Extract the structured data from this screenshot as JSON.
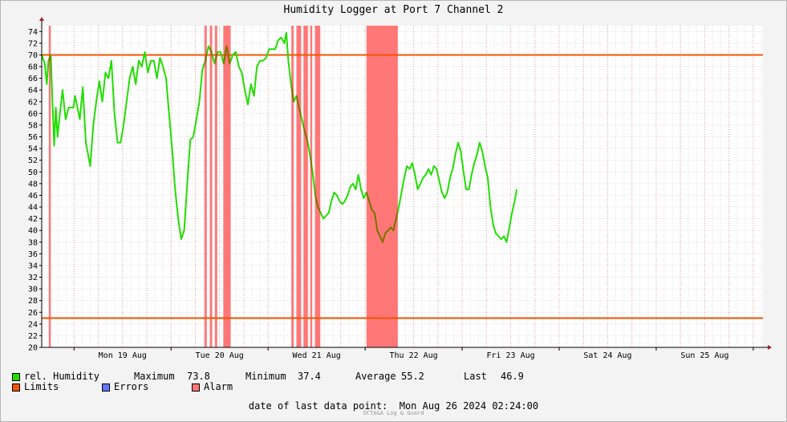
{
  "title": "Humidity Logger at Port 7 Channel 2",
  "legend": {
    "series_label": "rel. Humidity",
    "max_label": "Maximum",
    "max_value": "73.8",
    "min_label": "Minimum",
    "min_value": "37.4",
    "avg_label": "Average",
    "avg_value": "55.2",
    "last_label": "Last",
    "last_value": "46.9",
    "limits_label": "Limits",
    "errors_label": "Errors",
    "alarm_label": "Alarm"
  },
  "footer": {
    "label": "date of last data point:",
    "value": "Mon Aug 26 2024 02:24:00",
    "credit": "OCTA&A Log & Guard"
  },
  "colors": {
    "series": "#22dd00",
    "series_alarm": "#8a6a00",
    "limits": "#ee5500",
    "errors": "#6677ff",
    "alarm": "#ff7777",
    "grid_major": "#e0a0a0",
    "grid_minor": "#dcdcdc"
  },
  "chart_data": {
    "type": "line",
    "xlabel": "",
    "ylabel": "",
    "x_range": [
      "2024-08-18 16:00",
      "2024-08-26 02:24"
    ],
    "ylim": [
      20,
      75
    ],
    "y_ticks": [
      20,
      22,
      24,
      26,
      28,
      30,
      32,
      34,
      36,
      38,
      40,
      42,
      44,
      46,
      48,
      50,
      52,
      54,
      56,
      58,
      60,
      62,
      64,
      66,
      68,
      70,
      72,
      74
    ],
    "x_ticks": [
      {
        "label": "Mon 19 Aug",
        "x": "2024-08-19 12:00"
      },
      {
        "label": "Tue 20 Aug",
        "x": "2024-08-20 12:00"
      },
      {
        "label": "Wed 21 Aug",
        "x": "2024-08-21 12:00"
      },
      {
        "label": "Thu 22 Aug",
        "x": "2024-08-22 12:00"
      },
      {
        "label": "Fri 23 Aug",
        "x": "2024-08-23 12:00"
      },
      {
        "label": "Sat 24 Aug",
        "x": "2024-08-24 12:00"
      },
      {
        "label": "Sun 25 Aug",
        "x": "2024-08-25 12:00"
      }
    ],
    "limits": [
      25,
      70
    ],
    "alarm_periods": [
      [
        "2024-08-18 17:45",
        "2024-08-18 18:15"
      ],
      [
        "2024-08-20 08:15",
        "2024-08-20 08:50"
      ],
      [
        "2024-08-20 09:35",
        "2024-08-20 10:10"
      ],
      [
        "2024-08-20 10:50",
        "2024-08-20 11:25"
      ],
      [
        "2024-08-20 12:55",
        "2024-08-20 14:45"
      ],
      [
        "2024-08-21 05:45",
        "2024-08-21 06:20"
      ],
      [
        "2024-08-21 07:00",
        "2024-08-21 08:10"
      ],
      [
        "2024-08-21 08:45",
        "2024-08-21 09:50"
      ],
      [
        "2024-08-21 10:25",
        "2024-08-21 10:55"
      ],
      [
        "2024-08-21 11:35",
        "2024-08-21 12:55"
      ],
      [
        "2024-08-22 00:20",
        "2024-08-22 08:05"
      ]
    ],
    "series": [
      {
        "name": "rel. Humidity",
        "points": [
          [
            "2024-08-18 16:00",
            70.0
          ],
          [
            "2024-08-18 16:45",
            68.5
          ],
          [
            "2024-08-18 17:15",
            65.0
          ],
          [
            "2024-08-18 17:40",
            69.0
          ],
          [
            "2024-08-18 18:15",
            70.0
          ],
          [
            "2024-08-18 18:40",
            62.0
          ],
          [
            "2024-08-18 19:05",
            54.5
          ],
          [
            "2024-08-18 19:30",
            61.0
          ],
          [
            "2024-08-18 19:55",
            56.0
          ],
          [
            "2024-08-18 20:40",
            61.0
          ],
          [
            "2024-08-18 21:10",
            64.0
          ],
          [
            "2024-08-18 21:55",
            59.0
          ],
          [
            "2024-08-18 22:40",
            61.0
          ],
          [
            "2024-08-18 23:50",
            61.0
          ],
          [
            "2024-08-19 00:15",
            63.0
          ],
          [
            "2024-08-19 01:25",
            59.0
          ],
          [
            "2024-08-19 02:10",
            64.5
          ],
          [
            "2024-08-19 02:55",
            55.0
          ],
          [
            "2024-08-19 04:00",
            51.0
          ],
          [
            "2024-08-19 04:45",
            58.0
          ],
          [
            "2024-08-19 05:30",
            62.0
          ],
          [
            "2024-08-19 06:15",
            65.5
          ],
          [
            "2024-08-19 07:00",
            62.0
          ],
          [
            "2024-08-19 07:45",
            67.0
          ],
          [
            "2024-08-19 08:30",
            66.0
          ],
          [
            "2024-08-19 09:15",
            69.0
          ],
          [
            "2024-08-19 10:00",
            60.0
          ],
          [
            "2024-08-19 10:45",
            55.0
          ],
          [
            "2024-08-19 11:30",
            55.0
          ],
          [
            "2024-08-19 12:15",
            58.0
          ],
          [
            "2024-08-19 13:00",
            62.0
          ],
          [
            "2024-08-19 13:45",
            66.0
          ],
          [
            "2024-08-19 14:30",
            68.0
          ],
          [
            "2024-08-19 15:15",
            65.0
          ],
          [
            "2024-08-19 16:00",
            69.0
          ],
          [
            "2024-08-19 16:45",
            68.0
          ],
          [
            "2024-08-19 17:30",
            70.5
          ],
          [
            "2024-08-19 18:15",
            67.0
          ],
          [
            "2024-08-19 19:00",
            69.0
          ],
          [
            "2024-08-19 19:45",
            69.0
          ],
          [
            "2024-08-19 20:30",
            66.0
          ],
          [
            "2024-08-19 21:15",
            69.5
          ],
          [
            "2024-08-19 22:00",
            68.0
          ],
          [
            "2024-08-19 22:45",
            66.0
          ],
          [
            "2024-08-19 23:30",
            60.0
          ],
          [
            "2024-08-20 00:15",
            54.0
          ],
          [
            "2024-08-20 01:00",
            47.0
          ],
          [
            "2024-08-20 01:45",
            42.0
          ],
          [
            "2024-08-20 02:30",
            38.5
          ],
          [
            "2024-08-20 03:15",
            40.0
          ],
          [
            "2024-08-20 04:00",
            48.0
          ],
          [
            "2024-08-20 04:45",
            55.5
          ],
          [
            "2024-08-20 05:30",
            56.0
          ],
          [
            "2024-08-20 06:15",
            59.0
          ],
          [
            "2024-08-20 07:00",
            62.0
          ],
          [
            "2024-08-20 07:45",
            67.5
          ],
          [
            "2024-08-20 08:30",
            69.0
          ],
          [
            "2024-08-20 09:15",
            71.5
          ],
          [
            "2024-08-20 10:00",
            70.5
          ],
          [
            "2024-08-20 10:45",
            68.5
          ],
          [
            "2024-08-20 11:30",
            70.5
          ],
          [
            "2024-08-20 12:15",
            70.5
          ],
          [
            "2024-08-20 13:00",
            68.5
          ],
          [
            "2024-08-20 13:45",
            71.5
          ],
          [
            "2024-08-20 14:30",
            68.5
          ],
          [
            "2024-08-20 15:15",
            70.0
          ],
          [
            "2024-08-20 16:00",
            70.5
          ],
          [
            "2024-08-20 16:45",
            68.0
          ],
          [
            "2024-08-20 17:30",
            67.0
          ],
          [
            "2024-08-20 18:15",
            64.0
          ],
          [
            "2024-08-20 19:00",
            61.5
          ],
          [
            "2024-08-20 19:45",
            65.0
          ],
          [
            "2024-08-20 20:30",
            63.0
          ],
          [
            "2024-08-20 21:15",
            68.0
          ],
          [
            "2024-08-20 22:00",
            69.0
          ],
          [
            "2024-08-20 22:45",
            69.0
          ],
          [
            "2024-08-20 23:30",
            69.5
          ],
          [
            "2024-08-21 00:15",
            71.0
          ],
          [
            "2024-08-21 01:00",
            71.0
          ],
          [
            "2024-08-21 01:45",
            71.0
          ],
          [
            "2024-08-21 02:30",
            72.5
          ],
          [
            "2024-08-21 03:15",
            73.0
          ],
          [
            "2024-08-21 04:00",
            72.0
          ],
          [
            "2024-08-21 04:30",
            73.8
          ],
          [
            "2024-08-21 05:00",
            69.0
          ],
          [
            "2024-08-21 05:40",
            65.0
          ],
          [
            "2024-08-21 06:20",
            62.0
          ],
          [
            "2024-08-21 07:00",
            63.0
          ],
          [
            "2024-08-21 07:40",
            61.0
          ],
          [
            "2024-08-21 08:20",
            59.0
          ],
          [
            "2024-08-21 09:00",
            57.0
          ],
          [
            "2024-08-21 09:40",
            55.5
          ],
          [
            "2024-08-21 10:20",
            53.0
          ],
          [
            "2024-08-21 11:00",
            50.0
          ],
          [
            "2024-08-21 11:40",
            46.0
          ],
          [
            "2024-08-21 12:20",
            44.0
          ],
          [
            "2024-08-21 13:00",
            43.0
          ],
          [
            "2024-08-21 13:40",
            42.0
          ],
          [
            "2024-08-21 14:20",
            42.5
          ],
          [
            "2024-08-21 15:00",
            43.0
          ],
          [
            "2024-08-21 15:40",
            45.0
          ],
          [
            "2024-08-21 16:20",
            46.5
          ],
          [
            "2024-08-21 17:00",
            46.0
          ],
          [
            "2024-08-21 17:40",
            45.0
          ],
          [
            "2024-08-21 18:20",
            44.5
          ],
          [
            "2024-08-21 19:00",
            45.0
          ],
          [
            "2024-08-21 19:40",
            46.0
          ],
          [
            "2024-08-21 20:20",
            47.5
          ],
          [
            "2024-08-21 21:00",
            48.0
          ],
          [
            "2024-08-21 21:40",
            47.0
          ],
          [
            "2024-08-21 22:20",
            49.5
          ],
          [
            "2024-08-21 23:00",
            47.0
          ],
          [
            "2024-08-21 23:40",
            45.5
          ],
          [
            "2024-08-22 00:20",
            46.5
          ],
          [
            "2024-08-22 01:00",
            45.0
          ],
          [
            "2024-08-22 01:40",
            43.5
          ],
          [
            "2024-08-22 02:20",
            43.0
          ],
          [
            "2024-08-22 03:00",
            40.0
          ],
          [
            "2024-08-22 03:40",
            39.0
          ],
          [
            "2024-08-22 04:20",
            38.0
          ],
          [
            "2024-08-22 05:00",
            39.5
          ],
          [
            "2024-08-22 05:40",
            40.0
          ],
          [
            "2024-08-22 06:20",
            40.5
          ],
          [
            "2024-08-22 07:00",
            40.0
          ],
          [
            "2024-08-22 07:40",
            42.0
          ],
          [
            "2024-08-22 08:20",
            44.0
          ],
          [
            "2024-08-22 09:00",
            46.5
          ],
          [
            "2024-08-22 09:40",
            49.0
          ],
          [
            "2024-08-22 10:20",
            51.0
          ],
          [
            "2024-08-22 11:00",
            50.5
          ],
          [
            "2024-08-22 11:40",
            51.5
          ],
          [
            "2024-08-22 12:20",
            49.5
          ],
          [
            "2024-08-22 13:00",
            47.0
          ],
          [
            "2024-08-22 13:40",
            48.0
          ],
          [
            "2024-08-22 14:20",
            49.0
          ],
          [
            "2024-08-22 15:00",
            49.5
          ],
          [
            "2024-08-22 15:40",
            50.5
          ],
          [
            "2024-08-22 16:20",
            49.5
          ],
          [
            "2024-08-22 17:00",
            51.0
          ],
          [
            "2024-08-22 17:40",
            50.5
          ],
          [
            "2024-08-22 18:20",
            48.5
          ],
          [
            "2024-08-22 19:00",
            46.5
          ],
          [
            "2024-08-22 19:40",
            45.5
          ],
          [
            "2024-08-22 20:20",
            46.5
          ],
          [
            "2024-08-22 21:00",
            49.0
          ],
          [
            "2024-08-22 21:40",
            50.5
          ],
          [
            "2024-08-22 22:20",
            53.0
          ],
          [
            "2024-08-22 23:00",
            55.0
          ],
          [
            "2024-08-22 23:40",
            53.5
          ],
          [
            "2024-08-23 00:20",
            50.0
          ],
          [
            "2024-08-23 01:00",
            47.0
          ],
          [
            "2024-08-23 01:40",
            47.0
          ],
          [
            "2024-08-23 02:20",
            49.5
          ],
          [
            "2024-08-23 03:00",
            51.5
          ],
          [
            "2024-08-23 03:40",
            53.0
          ],
          [
            "2024-08-23 04:20",
            55.0
          ],
          [
            "2024-08-23 05:00",
            53.5
          ],
          [
            "2024-08-23 05:40",
            51.0
          ],
          [
            "2024-08-23 06:20",
            49.0
          ],
          [
            "2024-08-23 07:00",
            44.0
          ],
          [
            "2024-08-23 07:40",
            41.0
          ],
          [
            "2024-08-23 08:20",
            39.5
          ],
          [
            "2024-08-23 09:00",
            39.0
          ],
          [
            "2024-08-23 09:40",
            38.5
          ],
          [
            "2024-08-23 10:20",
            39.0
          ],
          [
            "2024-08-23 11:00",
            38.0
          ],
          [
            "2024-08-23 11:40",
            40.5
          ],
          [
            "2024-08-23 12:20",
            43.0
          ],
          [
            "2024-08-23 13:00",
            45.0
          ],
          [
            "2024-08-23 13:30",
            47.0
          ]
        ]
      }
    ]
  }
}
